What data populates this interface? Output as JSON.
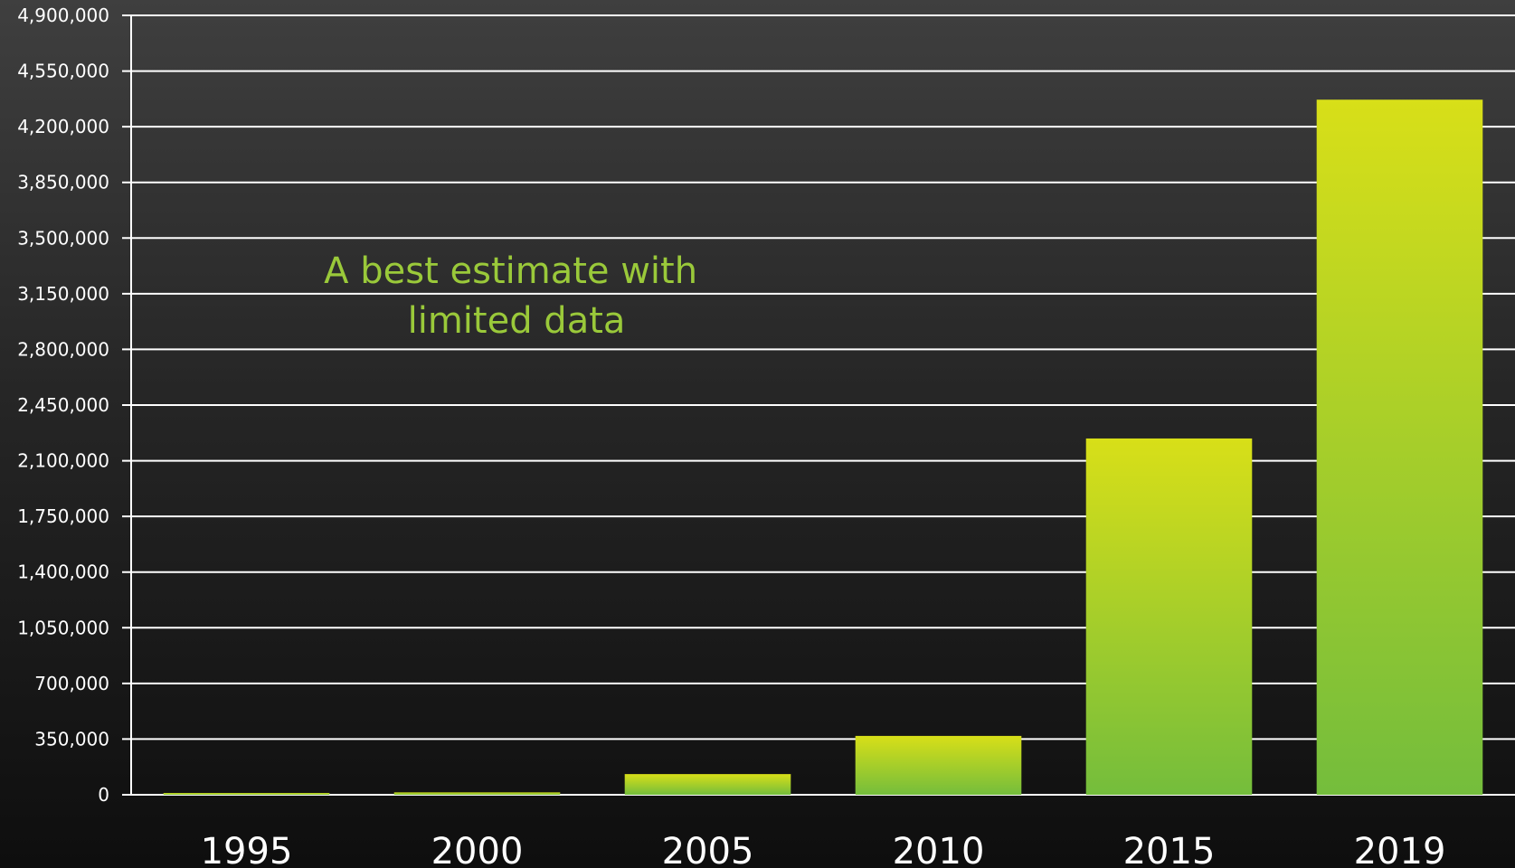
{
  "chart_data": {
    "type": "bar",
    "categories": [
      "1995",
      "2000",
      "2005",
      "2010",
      "2015",
      "2019"
    ],
    "values": [
      5000,
      15000,
      130000,
      370000,
      2240000,
      4370000
    ],
    "ylim": [
      0,
      4900000
    ],
    "yticks": [
      0,
      350000,
      700000,
      1050000,
      1400000,
      1750000,
      2100000,
      2450000,
      2800000,
      3150000,
      3500000,
      3850000,
      4200000,
      4550000,
      4900000
    ],
    "ytick_labels": [
      "0",
      "350,000",
      "700,000",
      "1,050,000",
      "1,400,000",
      "1,750,000",
      "2,100,000",
      "2,450,000",
      "2,800,000",
      "3,150,000",
      "3,500,000",
      "3,850,000",
      "4,200,000",
      "4,550,000",
      "4,900,000"
    ],
    "title": "",
    "xlabel": "",
    "ylabel": "",
    "grid": true,
    "legend": "none",
    "annotation": [
      "A best estimate with",
      "limited data"
    ],
    "colors": {
      "bar_top": "#d8df18",
      "bar_bottom": "#74bd3c",
      "annotation": "#9ac93a",
      "gridline": "#ffffff",
      "text": "#ffffff"
    }
  }
}
